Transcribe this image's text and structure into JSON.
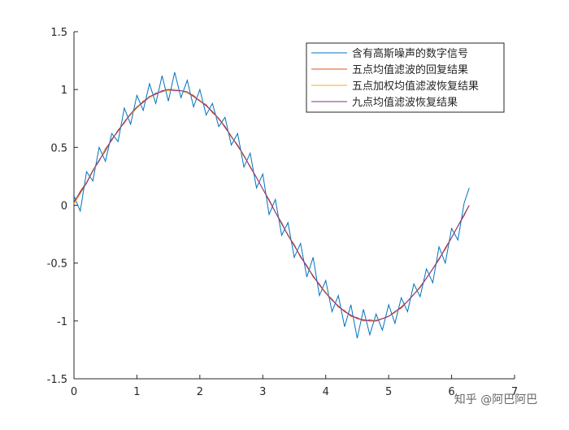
{
  "chart_data": {
    "type": "line",
    "x": [
      0,
      0.1,
      0.2,
      0.3,
      0.4,
      0.5,
      0.6,
      0.7,
      0.8,
      0.9,
      1.0,
      1.1,
      1.2,
      1.3,
      1.4,
      1.5,
      1.6,
      1.7,
      1.8,
      1.9,
      2.0,
      2.1,
      2.2,
      2.3,
      2.4,
      2.5,
      2.6,
      2.7,
      2.8,
      2.9,
      3.0,
      3.1,
      3.2,
      3.3,
      3.4,
      3.5,
      3.6,
      3.7,
      3.8,
      3.9,
      4.0,
      4.1,
      4.2,
      4.3,
      4.4,
      4.5,
      4.6,
      4.7,
      4.8,
      4.9,
      5.0,
      5.1,
      5.2,
      5.3,
      5.4,
      5.5,
      5.6,
      5.7,
      5.8,
      5.9,
      6.0,
      6.1,
      6.2,
      6.28
    ],
    "series": [
      {
        "name": "含有高斯噪声的数字信号",
        "color": "#0072BD",
        "values": [
          0.08,
          -0.05,
          0.29,
          0.21,
          0.5,
          0.38,
          0.62,
          0.55,
          0.84,
          0.7,
          0.95,
          0.82,
          1.05,
          0.88,
          1.12,
          0.9,
          1.15,
          0.93,
          1.08,
          0.85,
          1.0,
          0.78,
          0.88,
          0.68,
          0.76,
          0.52,
          0.62,
          0.33,
          0.45,
          0.15,
          0.27,
          -0.08,
          0.05,
          -0.26,
          -0.15,
          -0.45,
          -0.33,
          -0.62,
          -0.45,
          -0.78,
          -0.65,
          -0.92,
          -0.78,
          -1.05,
          -0.86,
          -1.15,
          -0.9,
          -1.12,
          -0.94,
          -1.08,
          -0.86,
          -1.02,
          -0.8,
          -0.92,
          -0.68,
          -0.79,
          -0.55,
          -0.67,
          -0.36,
          -0.5,
          -0.2,
          -0.3,
          0.02,
          0.15
        ]
      },
      {
        "name": "五点均值滤波的回复结果",
        "color": "#D95319",
        "values": [
          0.02,
          0.12,
          0.2,
          0.3,
          0.38,
          0.49,
          0.56,
          0.65,
          0.71,
          0.79,
          0.84,
          0.9,
          0.93,
          0.97,
          0.98,
          1.0,
          1.0,
          0.99,
          0.97,
          0.95,
          0.9,
          0.87,
          0.8,
          0.75,
          0.67,
          0.6,
          0.51,
          0.43,
          0.33,
          0.24,
          0.14,
          0.05,
          -0.06,
          -0.15,
          -0.26,
          -0.34,
          -0.45,
          -0.52,
          -0.62,
          -0.68,
          -0.76,
          -0.81,
          -0.88,
          -0.91,
          -0.96,
          -0.97,
          -1.0,
          -0.99,
          -1.0,
          -0.98,
          -0.96,
          -0.92,
          -0.89,
          -0.83,
          -0.77,
          -0.71,
          -0.63,
          -0.55,
          -0.46,
          -0.38,
          -0.28,
          -0.18,
          -0.09,
          0.0
        ]
      },
      {
        "name": "五点加权均值滤波恢复结果",
        "color": "#EDB120",
        "values": [
          0.01,
          0.1,
          0.2,
          0.29,
          0.39,
          0.48,
          0.57,
          0.64,
          0.72,
          0.78,
          0.84,
          0.89,
          0.93,
          0.96,
          0.99,
          0.99,
          1.0,
          0.99,
          0.97,
          0.94,
          0.91,
          0.86,
          0.81,
          0.74,
          0.68,
          0.6,
          0.52,
          0.42,
          0.34,
          0.24,
          0.14,
          0.04,
          -0.06,
          -0.16,
          -0.25,
          -0.35,
          -0.44,
          -0.53,
          -0.61,
          -0.69,
          -0.75,
          -0.82,
          -0.87,
          -0.92,
          -0.95,
          -0.98,
          -0.99,
          -1.0,
          -0.99,
          -0.98,
          -0.96,
          -0.93,
          -0.88,
          -0.83,
          -0.77,
          -0.7,
          -0.63,
          -0.55,
          -0.47,
          -0.37,
          -0.28,
          -0.18,
          -0.08,
          0.0
        ]
      },
      {
        "name": "九点均值滤波恢复结果",
        "color": "#7E2F8E",
        "values": [
          0.03,
          0.11,
          0.19,
          0.3,
          0.39,
          0.47,
          0.57,
          0.64,
          0.72,
          0.79,
          0.85,
          0.89,
          0.94,
          0.96,
          0.99,
          1.0,
          0.99,
          0.99,
          0.98,
          0.94,
          0.9,
          0.86,
          0.81,
          0.75,
          0.68,
          0.59,
          0.52,
          0.43,
          0.33,
          0.24,
          0.14,
          0.04,
          -0.06,
          -0.16,
          -0.26,
          -0.35,
          -0.44,
          -0.53,
          -0.61,
          -0.69,
          -0.76,
          -0.82,
          -0.87,
          -0.92,
          -0.95,
          -0.98,
          -0.99,
          -1.0,
          -1.0,
          -0.98,
          -0.96,
          -0.92,
          -0.88,
          -0.83,
          -0.77,
          -0.71,
          -0.63,
          -0.55,
          -0.47,
          -0.37,
          -0.28,
          -0.18,
          -0.08,
          0.0
        ]
      }
    ],
    "xlim": [
      0,
      7
    ],
    "xticks": [
      0,
      1,
      2,
      3,
      4,
      5,
      6,
      7
    ],
    "ylim": [
      -1.5,
      1.5
    ],
    "yticks": [
      -1.5,
      -1,
      -0.5,
      0,
      0.5,
      1,
      1.5
    ],
    "legend": "top-right",
    "watermark": "知乎 @阿巴阿巴"
  }
}
